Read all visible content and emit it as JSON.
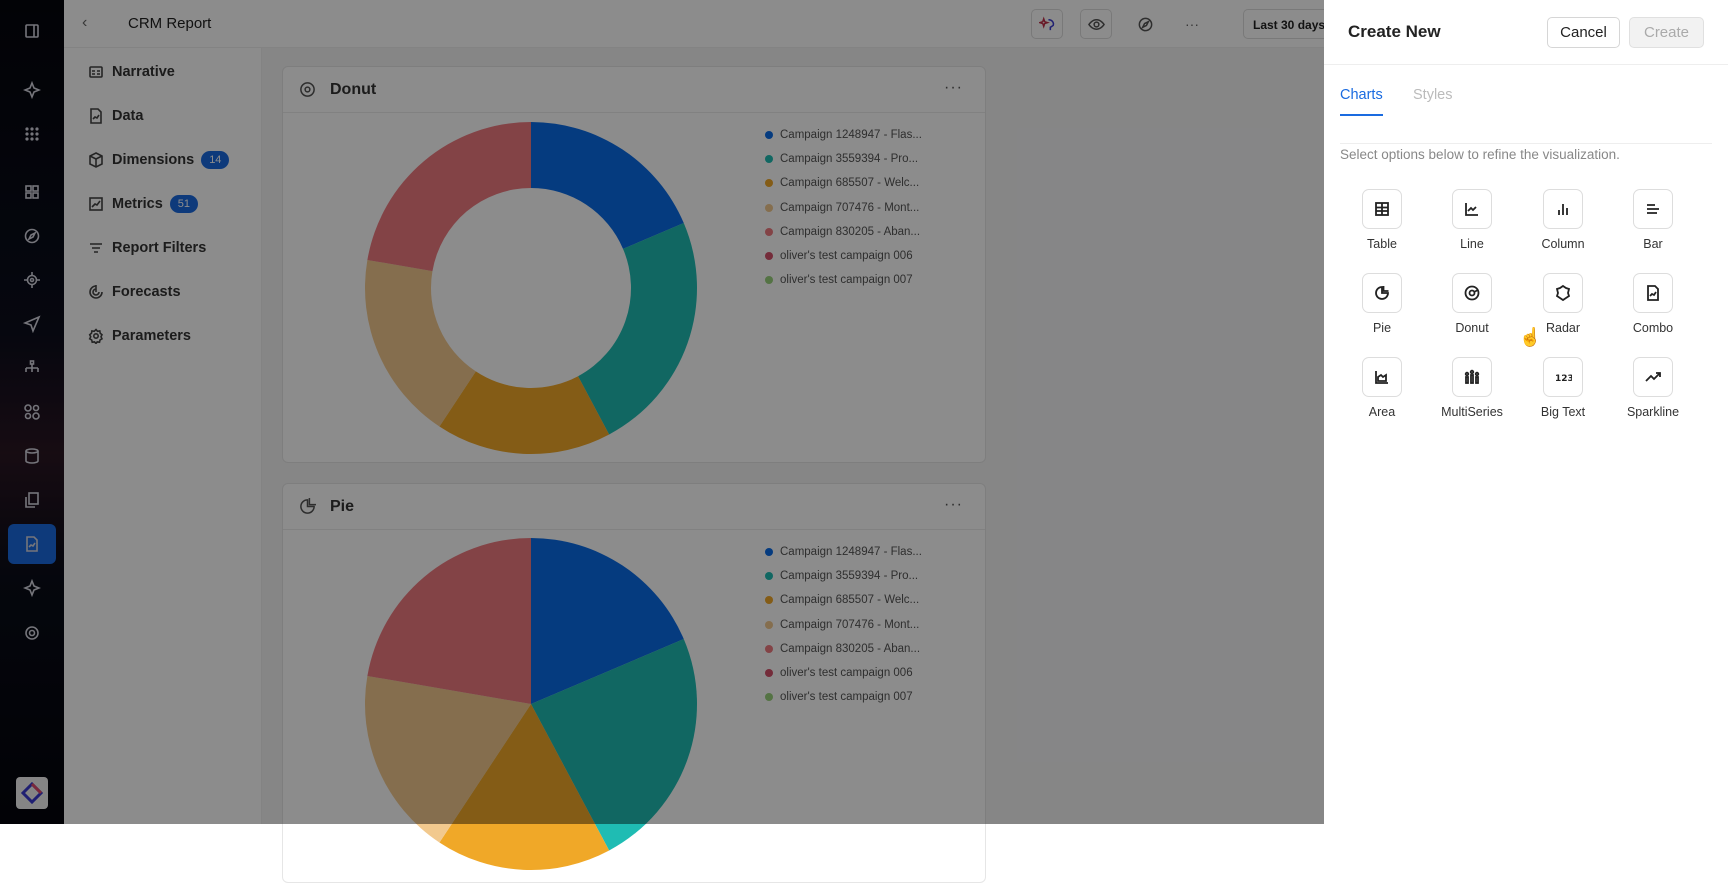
{
  "header": {
    "title": "CRM Report",
    "date_range": "Last 30 days"
  },
  "left_nav": {
    "items": [
      {
        "label": "Narrative",
        "icon": "narrative-icon"
      },
      {
        "label": "Data",
        "icon": "data-file-icon"
      },
      {
        "label": "Dimensions",
        "icon": "cube-icon",
        "badge": "14"
      },
      {
        "label": "Metrics",
        "icon": "metrics-icon",
        "badge": "51"
      },
      {
        "label": "Report Filters",
        "icon": "filter-icon"
      },
      {
        "label": "Forecasts",
        "icon": "forecast-icon"
      },
      {
        "label": "Parameters",
        "icon": "gear-icon"
      }
    ]
  },
  "cards": [
    {
      "title": "Donut"
    },
    {
      "title": "Pie"
    }
  ],
  "chart_data": [
    {
      "type": "pie",
      "variant": "donut",
      "title": "Donut",
      "labels": [
        "Campaign 1248947 - Flas...",
        "Campaign 3559394 - Pro...",
        "Campaign 685507 - Welc...",
        "Campaign 707476 - Mont...",
        "Campaign 830205 - Aban...",
        "oliver's test campaign 006",
        "oliver's test campaign 007"
      ],
      "values": [
        18.6,
        23.6,
        17.1,
        18.4,
        22.3,
        0,
        0
      ],
      "colors": [
        "#0a6ce8",
        "#1fbcb3",
        "#f0a828",
        "#f2c98e",
        "#ef7a80",
        "#d4506a",
        "#9ad27c"
      ],
      "legend": "right"
    },
    {
      "type": "pie",
      "title": "Pie",
      "labels": [
        "Campaign 1248947 - Flas...",
        "Campaign 3559394 - Pro...",
        "Campaign 685507 - Welc...",
        "Campaign 707476 - Mont...",
        "Campaign 830205 - Aban...",
        "oliver's test campaign 006",
        "oliver's test campaign 007"
      ],
      "values": [
        18.6,
        23.6,
        17.1,
        18.4,
        22.3,
        0,
        0
      ],
      "colors": [
        "#0a6ce8",
        "#1fbcb3",
        "#f0a828",
        "#f2c98e",
        "#ef7a80",
        "#d4506a",
        "#9ad27c"
      ],
      "legend": "right"
    }
  ],
  "panel": {
    "title": "Create New",
    "cancel": "Cancel",
    "create": "Create",
    "tabs": [
      "Charts",
      "Styles"
    ],
    "description": "Select options below to refine the visualization.",
    "options": [
      {
        "label": "Table",
        "icon": "table-icon"
      },
      {
        "label": "Line",
        "icon": "line-chart-icon"
      },
      {
        "label": "Column",
        "icon": "column-chart-icon"
      },
      {
        "label": "Bar",
        "icon": "bar-chart-icon"
      },
      {
        "label": "Pie",
        "icon": "pie-chart-icon"
      },
      {
        "label": "Donut",
        "icon": "donut-chart-icon"
      },
      {
        "label": "Radar",
        "icon": "radar-chart-icon"
      },
      {
        "label": "Combo",
        "icon": "combo-chart-icon"
      },
      {
        "label": "Area",
        "icon": "area-chart-icon"
      },
      {
        "label": "MultiSeries",
        "icon": "multiseries-icon"
      },
      {
        "label": "Big Text",
        "icon": "big-text-icon"
      },
      {
        "label": "Sparkline",
        "icon": "sparkline-icon"
      }
    ]
  },
  "accent": "#1a6be0"
}
